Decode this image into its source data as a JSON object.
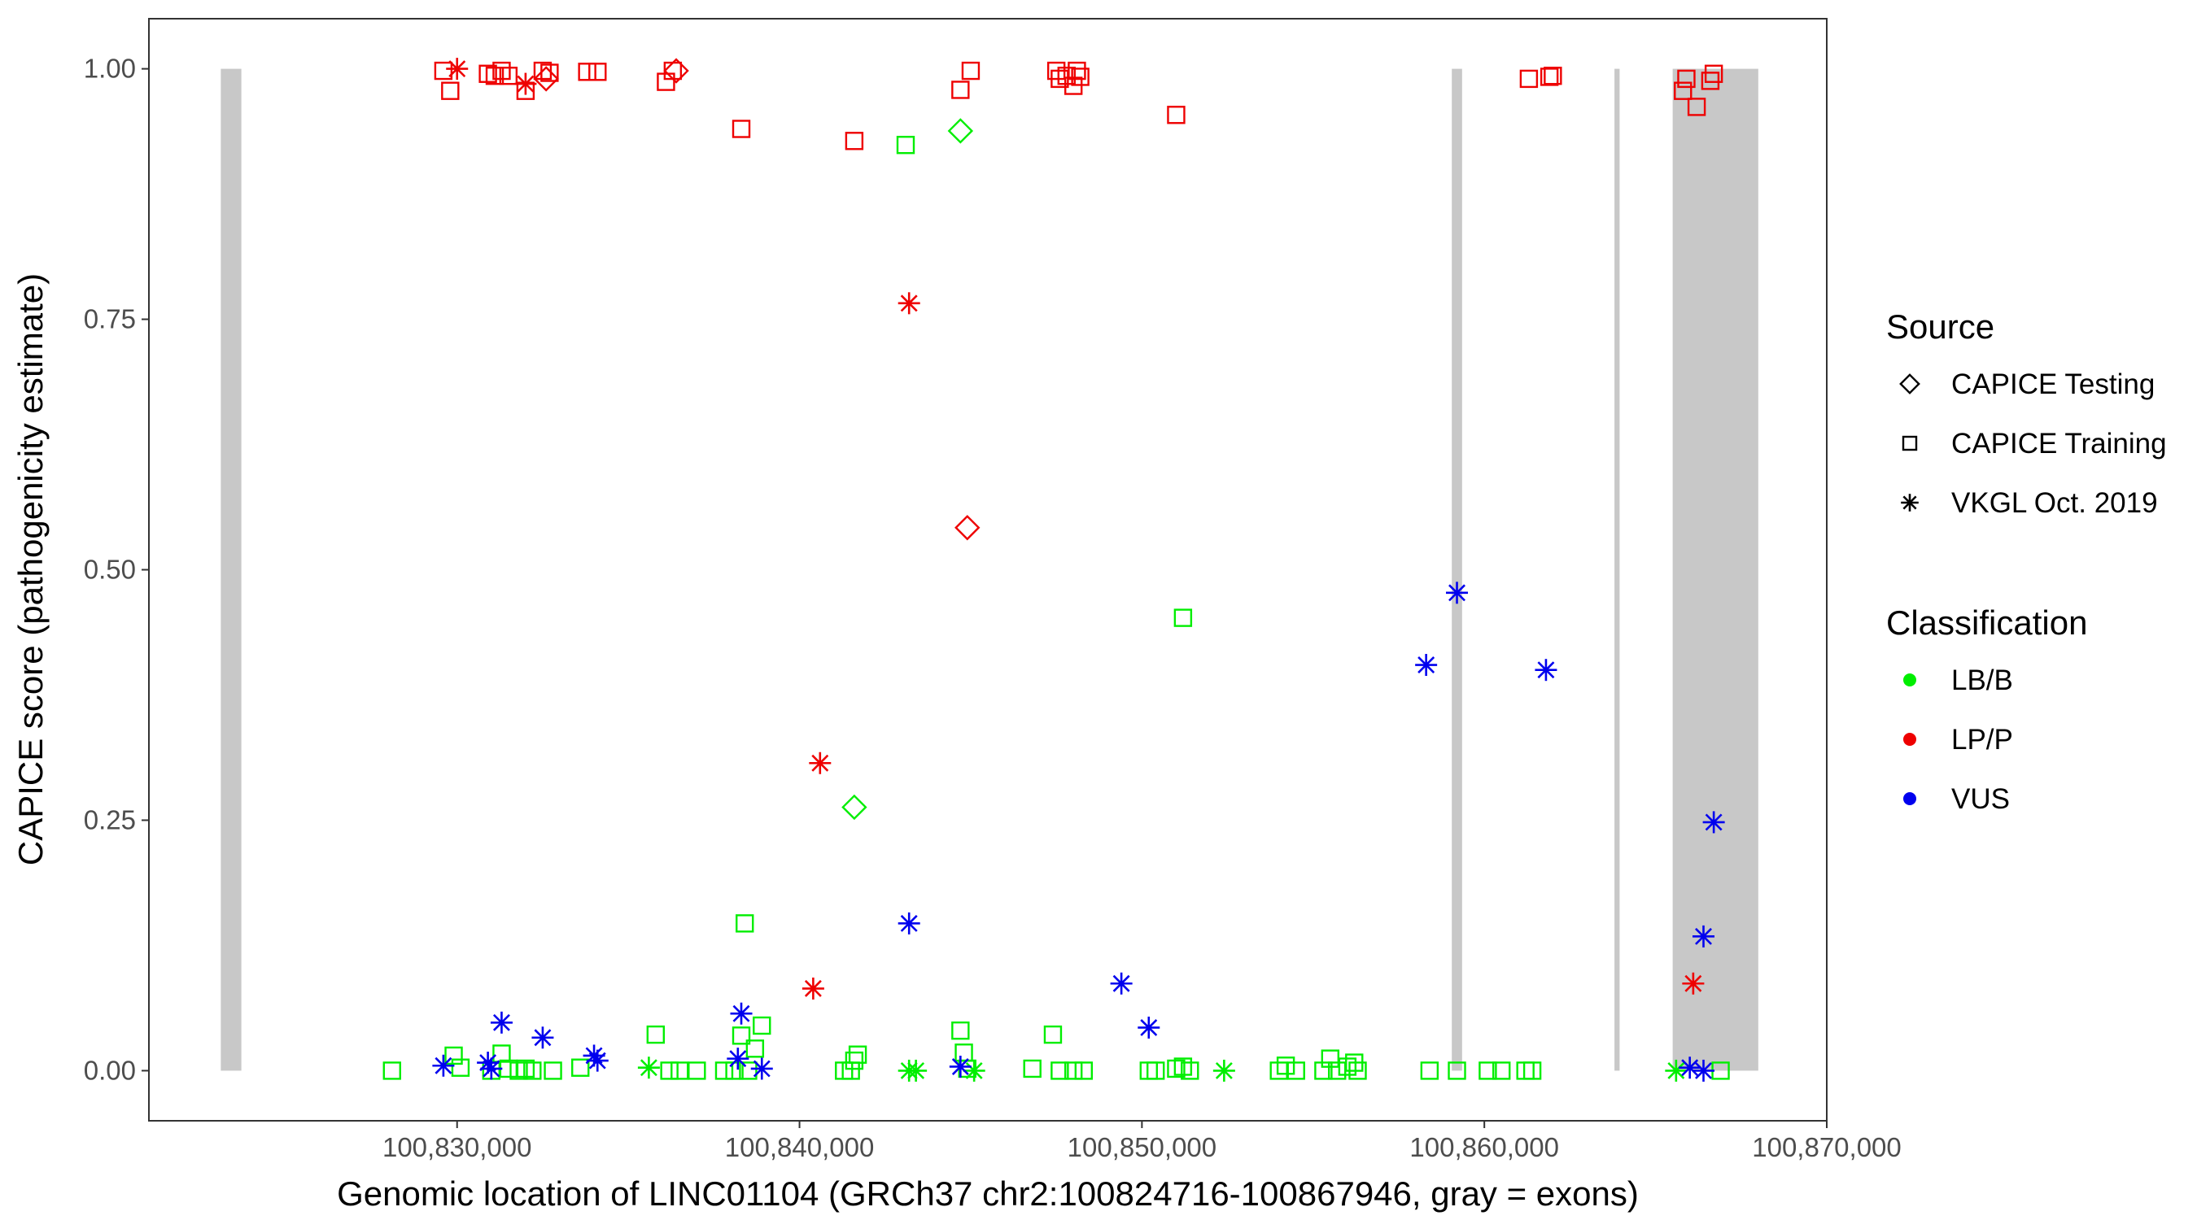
{
  "chart_data": {
    "type": "scatter",
    "title": "",
    "xlabel": "Genomic location of LINC01104 (GRCh37 chr2:100824716-100867946, gray = exons)",
    "ylabel": "CAPICE score (pathogenicity estimate)",
    "xlim": [
      100821000,
      100870000
    ],
    "ylim": [
      -0.05,
      1.05
    ],
    "x_ticks": [
      100830000,
      100840000,
      100850000,
      100860000,
      100870000
    ],
    "x_tick_labels": [
      "100,830,000",
      "100,840,000",
      "100,850,000",
      "100,860,000",
      "100,870,000"
    ],
    "y_ticks": [
      0,
      0.25,
      0.5,
      0.75,
      1.0
    ],
    "y_tick_labels": [
      "0.00",
      "0.25",
      "0.50",
      "0.75",
      "1.00"
    ],
    "grid": false,
    "legend_position": "right",
    "colors": {
      "LB/B": "#00ee00",
      "LP/P": "#ee0000",
      "VUS": "#0000ee",
      "exon": "#c8c8c8"
    },
    "exons": [
      {
        "start": 100823100,
        "end": 100823700
      },
      {
        "start": 100859050,
        "end": 100859350
      },
      {
        "start": 100863800,
        "end": 100863950
      },
      {
        "start": 100865500,
        "end": 100868000
      }
    ],
    "legend": {
      "source": {
        "title": "Source",
        "items": [
          {
            "label": "CAPICE Testing",
            "shape": "diamond"
          },
          {
            "label": "CAPICE Training",
            "shape": "square"
          },
          {
            "label": "VKGL Oct. 2019",
            "shape": "star"
          }
        ]
      },
      "classification": {
        "title": "Classification",
        "items": [
          {
            "label": "LB/B",
            "color": "#00ee00"
          },
          {
            "label": "LP/P",
            "color": "#ee0000"
          },
          {
            "label": "VUS",
            "color": "#0000ee"
          }
        ]
      }
    },
    "series": [
      {
        "name": "LP/P",
        "color": "#ee0000",
        "points": [
          {
            "x": 100829600,
            "y": 0.998,
            "shape": "square"
          },
          {
            "x": 100829800,
            "y": 0.978,
            "shape": "square"
          },
          {
            "x": 100830000,
            "y": 1.0,
            "shape": "star"
          },
          {
            "x": 100830900,
            "y": 0.995,
            "shape": "square"
          },
          {
            "x": 100831100,
            "y": 0.993,
            "shape": "square"
          },
          {
            "x": 100831300,
            "y": 0.998,
            "shape": "square"
          },
          {
            "x": 100831500,
            "y": 0.993,
            "shape": "square"
          },
          {
            "x": 100832000,
            "y": 0.978,
            "shape": "square"
          },
          {
            "x": 100832000,
            "y": 0.985,
            "shape": "star"
          },
          {
            "x": 100832500,
            "y": 0.998,
            "shape": "square"
          },
          {
            "x": 100832600,
            "y": 0.99,
            "shape": "diamond"
          },
          {
            "x": 100832700,
            "y": 0.996,
            "shape": "square"
          },
          {
            "x": 100833800,
            "y": 0.997,
            "shape": "square"
          },
          {
            "x": 100834100,
            "y": 0.997,
            "shape": "square"
          },
          {
            "x": 100836100,
            "y": 0.987,
            "shape": "square"
          },
          {
            "x": 100836300,
            "y": 0.998,
            "shape": "square"
          },
          {
            "x": 100836400,
            "y": 0.998,
            "shape": "diamond"
          },
          {
            "x": 100838300,
            "y": 0.94,
            "shape": "square"
          },
          {
            "x": 100841600,
            "y": 0.928,
            "shape": "square"
          },
          {
            "x": 100844700,
            "y": 0.979,
            "shape": "square"
          },
          {
            "x": 100845000,
            "y": 0.998,
            "shape": "square"
          },
          {
            "x": 100847500,
            "y": 0.998,
            "shape": "square"
          },
          {
            "x": 100847600,
            "y": 0.99,
            "shape": "square"
          },
          {
            "x": 100847800,
            "y": 0.993,
            "shape": "square"
          },
          {
            "x": 100848000,
            "y": 0.983,
            "shape": "square"
          },
          {
            "x": 100848100,
            "y": 0.998,
            "shape": "square"
          },
          {
            "x": 100848200,
            "y": 0.992,
            "shape": "square"
          },
          {
            "x": 100851000,
            "y": 0.954,
            "shape": "square"
          },
          {
            "x": 100861300,
            "y": 0.99,
            "shape": "square"
          },
          {
            "x": 100861900,
            "y": 0.992,
            "shape": "square"
          },
          {
            "x": 100862000,
            "y": 0.993,
            "shape": "square"
          },
          {
            "x": 100865800,
            "y": 0.978,
            "shape": "square"
          },
          {
            "x": 100865900,
            "y": 0.99,
            "shape": "square"
          },
          {
            "x": 100866200,
            "y": 0.962,
            "shape": "square"
          },
          {
            "x": 100866600,
            "y": 0.988,
            "shape": "square"
          },
          {
            "x": 100866700,
            "y": 0.995,
            "shape": "square"
          },
          {
            "x": 100843200,
            "y": 0.766,
            "shape": "star"
          },
          {
            "x": 100844900,
            "y": 0.542,
            "shape": "diamond"
          },
          {
            "x": 100840600,
            "y": 0.307,
            "shape": "star"
          },
          {
            "x": 100840400,
            "y": 0.082,
            "shape": "star"
          },
          {
            "x": 100866100,
            "y": 0.087,
            "shape": "star"
          }
        ]
      },
      {
        "name": "LB/B",
        "color": "#00ee00",
        "points": [
          {
            "x": 100843100,
            "y": 0.924,
            "shape": "square"
          },
          {
            "x": 100844700,
            "y": 0.938,
            "shape": "diamond"
          },
          {
            "x": 100851200,
            "y": 0.452,
            "shape": "square"
          },
          {
            "x": 100841600,
            "y": 0.263,
            "shape": "diamond"
          },
          {
            "x": 100838400,
            "y": 0.147,
            "shape": "square"
          },
          {
            "x": 100828100,
            "y": 0.0,
            "shape": "square"
          },
          {
            "x": 100829900,
            "y": 0.015,
            "shape": "square"
          },
          {
            "x": 100830100,
            "y": 0.003,
            "shape": "square"
          },
          {
            "x": 100831000,
            "y": 0.0,
            "shape": "square"
          },
          {
            "x": 100831300,
            "y": 0.017,
            "shape": "square"
          },
          {
            "x": 100831500,
            "y": 0.002,
            "shape": "square"
          },
          {
            "x": 100831800,
            "y": 0.0,
            "shape": "square"
          },
          {
            "x": 100832000,
            "y": 0.002,
            "shape": "square"
          },
          {
            "x": 100832200,
            "y": 0.0,
            "shape": "square"
          },
          {
            "x": 100832800,
            "y": 0.0,
            "shape": "square"
          },
          {
            "x": 100833600,
            "y": 0.003,
            "shape": "square"
          },
          {
            "x": 100835600,
            "y": 0.003,
            "shape": "star"
          },
          {
            "x": 100835800,
            "y": 0.036,
            "shape": "square"
          },
          {
            "x": 100836200,
            "y": 0.0,
            "shape": "square"
          },
          {
            "x": 100836500,
            "y": 0.0,
            "shape": "square"
          },
          {
            "x": 100837000,
            "y": 0.0,
            "shape": "square"
          },
          {
            "x": 100837800,
            "y": 0.0,
            "shape": "square"
          },
          {
            "x": 100838100,
            "y": 0.0,
            "shape": "square"
          },
          {
            "x": 100838300,
            "y": 0.035,
            "shape": "square"
          },
          {
            "x": 100838500,
            "y": 0.0,
            "shape": "square"
          },
          {
            "x": 100838700,
            "y": 0.022,
            "shape": "square"
          },
          {
            "x": 100838900,
            "y": 0.045,
            "shape": "square"
          },
          {
            "x": 100841300,
            "y": 0.0,
            "shape": "square"
          },
          {
            "x": 100841500,
            "y": 0.0,
            "shape": "square"
          },
          {
            "x": 100841600,
            "y": 0.01,
            "shape": "square"
          },
          {
            "x": 100841700,
            "y": 0.016,
            "shape": "square"
          },
          {
            "x": 100843200,
            "y": 0.0,
            "shape": "star"
          },
          {
            "x": 100843400,
            "y": 0.0,
            "shape": "star"
          },
          {
            "x": 100844700,
            "y": 0.04,
            "shape": "square"
          },
          {
            "x": 100844800,
            "y": 0.018,
            "shape": "square"
          },
          {
            "x": 100844900,
            "y": 0.002,
            "shape": "square"
          },
          {
            "x": 100845100,
            "y": 0.0,
            "shape": "star"
          },
          {
            "x": 100846800,
            "y": 0.002,
            "shape": "square"
          },
          {
            "x": 100847400,
            "y": 0.036,
            "shape": "square"
          },
          {
            "x": 100847600,
            "y": 0.0,
            "shape": "square"
          },
          {
            "x": 100848000,
            "y": 0.0,
            "shape": "square"
          },
          {
            "x": 100848300,
            "y": 0.0,
            "shape": "square"
          },
          {
            "x": 100850200,
            "y": 0.0,
            "shape": "square"
          },
          {
            "x": 100850400,
            "y": 0.0,
            "shape": "square"
          },
          {
            "x": 100851000,
            "y": 0.002,
            "shape": "square"
          },
          {
            "x": 100851200,
            "y": 0.004,
            "shape": "square"
          },
          {
            "x": 100851400,
            "y": 0.0,
            "shape": "square"
          },
          {
            "x": 100852400,
            "y": 0.0,
            "shape": "star"
          },
          {
            "x": 100854000,
            "y": 0.0,
            "shape": "square"
          },
          {
            "x": 100854200,
            "y": 0.005,
            "shape": "square"
          },
          {
            "x": 100854500,
            "y": 0.0,
            "shape": "square"
          },
          {
            "x": 100855300,
            "y": 0.0,
            "shape": "square"
          },
          {
            "x": 100855500,
            "y": 0.012,
            "shape": "square"
          },
          {
            "x": 100855700,
            "y": 0.0,
            "shape": "square"
          },
          {
            "x": 100856000,
            "y": 0.004,
            "shape": "square"
          },
          {
            "x": 100856200,
            "y": 0.008,
            "shape": "square"
          },
          {
            "x": 100856300,
            "y": 0.0,
            "shape": "square"
          },
          {
            "x": 100858400,
            "y": 0.0,
            "shape": "square"
          },
          {
            "x": 100859200,
            "y": 0.0,
            "shape": "square"
          },
          {
            "x": 100860100,
            "y": 0.0,
            "shape": "square"
          },
          {
            "x": 100860500,
            "y": 0.0,
            "shape": "square"
          },
          {
            "x": 100861200,
            "y": 0.0,
            "shape": "square"
          },
          {
            "x": 100861400,
            "y": 0.0,
            "shape": "square"
          },
          {
            "x": 100865600,
            "y": 0.0,
            "shape": "star"
          },
          {
            "x": 100866900,
            "y": 0.0,
            "shape": "square"
          }
        ]
      },
      {
        "name": "VUS",
        "color": "#0000ee",
        "points": [
          {
            "x": 100859200,
            "y": 0.477,
            "shape": "star"
          },
          {
            "x": 100858300,
            "y": 0.405,
            "shape": "star"
          },
          {
            "x": 100861800,
            "y": 0.4,
            "shape": "star"
          },
          {
            "x": 100866700,
            "y": 0.248,
            "shape": "star"
          },
          {
            "x": 100843200,
            "y": 0.147,
            "shape": "star"
          },
          {
            "x": 100866400,
            "y": 0.134,
            "shape": "star"
          },
          {
            "x": 100849400,
            "y": 0.087,
            "shape": "star"
          },
          {
            "x": 100838300,
            "y": 0.057,
            "shape": "star"
          },
          {
            "x": 100831300,
            "y": 0.048,
            "shape": "star"
          },
          {
            "x": 100850200,
            "y": 0.043,
            "shape": "star"
          },
          {
            "x": 100832500,
            "y": 0.033,
            "shape": "star"
          },
          {
            "x": 100834000,
            "y": 0.015,
            "shape": "star"
          },
          {
            "x": 100834100,
            "y": 0.01,
            "shape": "star"
          },
          {
            "x": 100838200,
            "y": 0.012,
            "shape": "star"
          },
          {
            "x": 100829600,
            "y": 0.005,
            "shape": "star"
          },
          {
            "x": 100830900,
            "y": 0.008,
            "shape": "star"
          },
          {
            "x": 100831000,
            "y": 0.002,
            "shape": "star"
          },
          {
            "x": 100838900,
            "y": 0.002,
            "shape": "star"
          },
          {
            "x": 100844700,
            "y": 0.004,
            "shape": "star"
          },
          {
            "x": 100866000,
            "y": 0.003,
            "shape": "star"
          },
          {
            "x": 100866400,
            "y": 0.0,
            "shape": "star"
          }
        ]
      }
    ]
  }
}
